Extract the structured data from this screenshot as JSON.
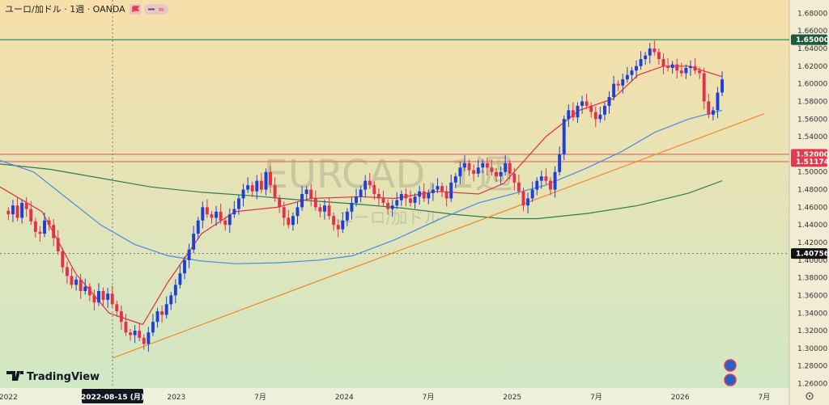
{
  "header": {
    "title": "ユーロ/加ドル · 1週 · OANDA",
    "badge_text": "≈"
  },
  "watermark": {
    "symbol": "EURCAD, 1週",
    "name": "ユーロ/加ドル"
  },
  "brand": {
    "name": "TradingView"
  },
  "cursor_date_label": "2022-08-15 (月)",
  "colors": {
    "bg_top": "#f7dfa9",
    "bg_bottom": "#cfe8c6",
    "up": "#1e3fd8",
    "down": "#e1314f",
    "ma_fast": "#e2313c",
    "ma_mid": "#4a8be0",
    "ma_slow": "#2f7a4f",
    "trend": "#f08a24",
    "hline_green": "#2e8b57",
    "hline_red": "#ee6666"
  },
  "chart_data": {
    "type": "candlestick",
    "y_ticks": [
      "1.68000",
      "1.66000",
      "1.64000",
      "1.62000",
      "1.60000",
      "1.58000",
      "1.56000",
      "1.54000",
      "1.52000",
      "1.50000",
      "1.48000",
      "1.46000",
      "1.44000",
      "1.42000",
      "1.40000",
      "1.38000",
      "1.36000",
      "1.34000",
      "1.32000",
      "1.30000",
      "1.28000",
      "1.26000"
    ],
    "ylim": [
      1.255,
      1.695
    ],
    "x_labels": [
      {
        "label": "2022",
        "t": 2022.0
      },
      {
        "label": "2023",
        "t": 2023.0
      },
      {
        "label": "7月",
        "t": 2023.5
      },
      {
        "label": "2024",
        "t": 2024.0
      },
      {
        "label": "7月",
        "t": 2024.5
      },
      {
        "label": "2025",
        "t": 2025.0
      },
      {
        "label": "7月",
        "t": 2025.5
      },
      {
        "label": "2026",
        "t": 2026.0
      },
      {
        "label": "7月",
        "t": 2026.5
      }
    ],
    "xlim": [
      2021.95,
      2026.65
    ],
    "price_tags": [
      {
        "label": "1.65000",
        "value": 1.65,
        "color": "#1f5a3b"
      },
      {
        "label": "1.52000",
        "value": 1.52,
        "color": "#e33a4d"
      },
      {
        "label": "1.51174",
        "value": 1.51174,
        "color": "#e33a4d"
      },
      {
        "label": "1.40756",
        "value": 1.40756,
        "color": "#111111"
      }
    ],
    "horizontal_lines": [
      1.65,
      1.52,
      1.51174
    ],
    "crosshair_time": 2022.62,
    "crosshair_price": 1.40756,
    "trendline": {
      "start": [
        2022.62,
        1.289
      ],
      "end": [
        2026.5,
        1.566
      ]
    },
    "ma_fast": [
      [
        2021.95,
        1.483
      ],
      [
        2022.2,
        1.455
      ],
      [
        2022.4,
        1.385
      ],
      [
        2022.6,
        1.34
      ],
      [
        2022.8,
        1.327
      ],
      [
        2022.95,
        1.375
      ],
      [
        2023.15,
        1.43
      ],
      [
        2023.35,
        1.455
      ],
      [
        2023.6,
        1.46
      ],
      [
        2023.8,
        1.47
      ],
      [
        2024.1,
        1.472
      ],
      [
        2024.3,
        1.47
      ],
      [
        2024.55,
        1.478
      ],
      [
        2024.8,
        1.475
      ],
      [
        2024.95,
        1.487
      ],
      [
        2025.2,
        1.54
      ],
      [
        2025.4,
        1.57
      ],
      [
        2025.6,
        1.583
      ],
      [
        2025.75,
        1.61
      ],
      [
        2025.9,
        1.62
      ],
      [
        2026.05,
        1.62
      ],
      [
        2026.25,
        1.608
      ]
    ],
    "ma_mid": [
      [
        2021.95,
        1.513
      ],
      [
        2022.15,
        1.5
      ],
      [
        2022.35,
        1.47
      ],
      [
        2022.55,
        1.44
      ],
      [
        2022.75,
        1.418
      ],
      [
        2022.95,
        1.405
      ],
      [
        2023.15,
        1.399
      ],
      [
        2023.35,
        1.396
      ],
      [
        2023.6,
        1.397
      ],
      [
        2023.85,
        1.4
      ],
      [
        2024.05,
        1.405
      ],
      [
        2024.3,
        1.423
      ],
      [
        2024.55,
        1.445
      ],
      [
        2024.8,
        1.465
      ],
      [
        2025.0,
        1.475
      ],
      [
        2025.2,
        1.485
      ],
      [
        2025.45,
        1.505
      ],
      [
        2025.65,
        1.523
      ],
      [
        2025.85,
        1.545
      ],
      [
        2026.05,
        1.56
      ],
      [
        2026.25,
        1.57
      ]
    ],
    "ma_slow": [
      [
        2021.95,
        1.509
      ],
      [
        2022.25,
        1.503
      ],
      [
        2022.55,
        1.493
      ],
      [
        2022.85,
        1.483
      ],
      [
        2023.15,
        1.477
      ],
      [
        2023.45,
        1.473
      ],
      [
        2023.75,
        1.468
      ],
      [
        2024.05,
        1.464
      ],
      [
        2024.35,
        1.459
      ],
      [
        2024.65,
        1.452
      ],
      [
        2024.95,
        1.447
      ],
      [
        2025.15,
        1.447
      ],
      [
        2025.45,
        1.453
      ],
      [
        2025.75,
        1.462
      ],
      [
        2026.05,
        1.476
      ],
      [
        2026.25,
        1.49
      ]
    ],
    "candles_close": [
      1.452,
      1.462,
      1.448,
      1.465,
      1.458,
      1.444,
      1.432,
      1.43,
      1.445,
      1.44,
      1.425,
      1.41,
      1.392,
      1.382,
      1.372,
      1.378,
      1.365,
      1.37,
      1.36,
      1.352,
      1.365,
      1.355,
      1.362,
      1.35,
      1.342,
      1.33,
      1.318,
      1.315,
      1.32,
      1.312,
      1.305,
      1.318,
      1.33,
      1.342,
      1.338,
      1.35,
      1.36,
      1.372,
      1.385,
      1.4,
      1.412,
      1.43,
      1.445,
      1.46,
      1.452,
      1.448,
      1.455,
      1.445,
      1.44,
      1.452,
      1.458,
      1.47,
      1.48,
      1.485,
      1.478,
      1.49,
      1.48,
      1.5,
      1.485,
      1.47,
      1.46,
      1.448,
      1.44,
      1.45,
      1.46,
      1.475,
      1.48,
      1.47,
      1.46,
      1.455,
      1.462,
      1.45,
      1.44,
      1.435,
      1.445,
      1.455,
      1.465,
      1.472,
      1.48,
      1.49,
      1.485,
      1.475,
      1.47,
      1.465,
      1.458,
      1.462,
      1.468,
      1.475,
      1.47,
      1.465,
      1.472,
      1.478,
      1.47,
      1.476,
      1.48,
      1.484,
      1.478,
      1.47,
      1.488,
      1.495,
      1.505,
      1.51,
      1.502,
      1.498,
      1.505,
      1.51,
      1.505,
      1.5,
      1.495,
      1.5,
      1.51,
      1.498,
      1.488,
      1.478,
      1.462,
      1.47,
      1.48,
      1.49,
      1.495,
      1.49,
      1.48,
      1.5,
      1.52,
      1.56,
      1.57,
      1.562,
      1.575,
      1.58,
      1.575,
      1.568,
      1.56,
      1.565,
      1.575,
      1.585,
      1.6,
      1.598,
      1.605,
      1.61,
      1.615,
      1.62,
      1.628,
      1.632,
      1.64,
      1.636,
      1.628,
      1.62,
      1.618,
      1.622,
      1.615,
      1.612,
      1.618,
      1.62,
      1.615,
      1.612,
      1.58,
      1.565,
      1.57,
      1.59,
      1.605
    ]
  }
}
